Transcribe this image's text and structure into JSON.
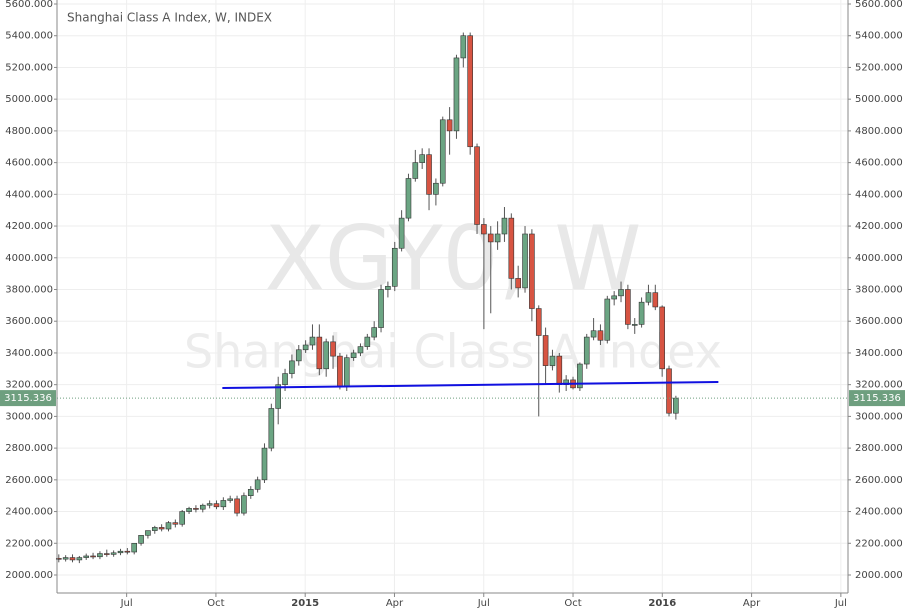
{
  "chart_data": {
    "type": "candlestick",
    "title": "Shanghai Class A Index, W, INDEX",
    "watermark": [
      "XGY0, W",
      "Shanghai Class A Index"
    ],
    "up_color": "#6ba583",
    "down_color": "#d75442",
    "x": [
      2014.31,
      2014.3292,
      2014.3484,
      2014.3676,
      2014.3868,
      2014.406,
      2014.4252,
      2014.4444,
      2014.4636,
      2014.4828,
      2014.502,
      2014.5212,
      2014.5404,
      2014.5596,
      2014.5788,
      2014.598,
      2014.6172,
      2014.6364,
      2014.6556,
      2014.6748,
      2014.694,
      2014.7132,
      2014.7324,
      2014.7516,
      2014.7708,
      2014.79,
      2014.8092,
      2014.8284,
      2014.8476,
      2014.8668,
      2014.886,
      2014.9052,
      2014.9244,
      2014.9436,
      2014.9628,
      2014.982,
      2015.0012,
      2015.0204,
      2015.0396,
      2015.0588,
      2015.078,
      2015.0972,
      2015.1164,
      2015.1356,
      2015.1548,
      2015.174,
      2015.1932,
      2015.2124,
      2015.2316,
      2015.2508,
      2015.27,
      2015.2892,
      2015.3084,
      2015.3276,
      2015.3468,
      2015.366,
      2015.3852,
      2015.4044,
      2015.4236,
      2015.4428,
      2015.462,
      2015.4812,
      2015.5004,
      2015.5196,
      2015.5388,
      2015.558,
      2015.5772,
      2015.5964,
      2015.6156,
      2015.6348,
      2015.654,
      2015.6732,
      2015.6924,
      2015.7116,
      2015.7308,
      2015.75,
      2015.7692,
      2015.7884,
      2015.8076,
      2015.8268,
      2015.846,
      2015.8652,
      2015.8844,
      2015.9036,
      2015.9228,
      2015.942,
      2015.9612,
      2015.9804,
      2015.9996,
      2016.0188,
      2016.038
    ],
    "open": [
      2105,
      2100,
      2110,
      2095,
      2110,
      2120,
      2115,
      2135,
      2130,
      2140,
      2150,
      2145,
      2200,
      2250,
      2280,
      2300,
      2290,
      2330,
      2320,
      2400,
      2420,
      2415,
      2440,
      2450,
      2430,
      2470,
      2480,
      2390,
      2500,
      2540,
      2600,
      2800,
      3050,
      3200,
      3270,
      3350,
      3420,
      3450,
      3500,
      3300,
      3470,
      3380,
      3190,
      3370,
      3400,
      3440,
      3500,
      3560,
      3800,
      3820,
      4060,
      4250,
      4500,
      4600,
      4650,
      4400,
      4470,
      4870,
      4800,
      5260,
      5400,
      4700,
      4210,
      4150,
      4100,
      4150,
      4250,
      3870,
      3810,
      4150,
      3680,
      3510,
      3320,
      3380,
      3200,
      3230,
      3180,
      3330,
      3500,
      3540,
      3480,
      3740,
      3760,
      3800,
      3580,
      3580,
      3720,
      3780,
      3690,
      3300,
      3020
    ],
    "high": [
      2130,
      2125,
      2130,
      2120,
      2135,
      2140,
      2150,
      2160,
      2155,
      2165,
      2170,
      2170,
      2230,
      2270,
      2310,
      2320,
      2340,
      2350,
      2410,
      2430,
      2440,
      2450,
      2470,
      2470,
      2490,
      2500,
      2500,
      2520,
      2560,
      2620,
      2830,
      3080,
      3250,
      3300,
      3390,
      3450,
      3480,
      3580,
      3580,
      3490,
      3510,
      3400,
      3390,
      3420,
      3460,
      3520,
      3600,
      3830,
      3850,
      4100,
      4300,
      4530,
      4680,
      4690,
      4690,
      4500,
      4890,
      4950,
      5280,
      5420,
      5420,
      4720,
      4250,
      4200,
      4230,
      4320,
      4280,
      3950,
      4200,
      4180,
      3700,
      3560,
      3420,
      3400,
      3260,
      3250,
      3340,
      3520,
      3620,
      3580,
      3760,
      3790,
      3850,
      3830,
      3620,
      3750,
      3830,
      3830,
      3700,
      3320,
      3130
    ],
    "low": [
      2080,
      2085,
      2080,
      2075,
      2095,
      2100,
      2100,
      2115,
      2115,
      2125,
      2130,
      2130,
      2185,
      2230,
      2260,
      2275,
      2275,
      2300,
      2305,
      2385,
      2395,
      2395,
      2420,
      2415,
      2410,
      2455,
      2370,
      2375,
      2480,
      2520,
      2580,
      2780,
      2950,
      3160,
      3240,
      3320,
      3400,
      3420,
      3260,
      3250,
      3300,
      3170,
      3160,
      3350,
      3380,
      3420,
      3480,
      3530,
      3750,
      3790,
      4040,
      4230,
      4480,
      4560,
      4300,
      4330,
      4450,
      4650,
      4750,
      5200,
      4650,
      4150,
      3550,
      3650,
      4050,
      4100,
      3800,
      3750,
      3780,
      3600,
      3000,
      3200,
      3290,
      3150,
      3160,
      3170,
      3160,
      3300,
      3480,
      3450,
      3460,
      3700,
      3720,
      3550,
      3520,
      3560,
      3700,
      3670,
      3250,
      3000,
      2980
    ],
    "close": [
      2100,
      2110,
      2095,
      2110,
      2120,
      2115,
      2135,
      2130,
      2140,
      2150,
      2145,
      2200,
      2250,
      2280,
      2300,
      2290,
      2330,
      2320,
      2400,
      2420,
      2415,
      2440,
      2450,
      2430,
      2470,
      2480,
      2390,
      2500,
      2540,
      2600,
      2800,
      3050,
      3200,
      3270,
      3350,
      3420,
      3450,
      3500,
      3300,
      3470,
      3380,
      3190,
      3370,
      3400,
      3440,
      3500,
      3560,
      3800,
      3820,
      4060,
      4250,
      4500,
      4600,
      4650,
      4400,
      4470,
      4870,
      4800,
      5260,
      5400,
      4700,
      4210,
      4150,
      4100,
      4150,
      4250,
      3870,
      3810,
      4150,
      3680,
      3510,
      3320,
      3380,
      3200,
      3230,
      3180,
      3330,
      3500,
      3540,
      3480,
      3740,
      3760,
      3800,
      3580,
      3580,
      3720,
      3780,
      3690,
      3300,
      3020,
      3115.336
    ],
    "trendline": {
      "x": [
        2014.768,
        2016.157
      ],
      "y": [
        3179,
        3217
      ],
      "color": "#1010e0"
    },
    "last_price": {
      "value": 3115.336,
      "label": "3115.336",
      "color": "#6e9f7f"
    },
    "xlim": [
      2014.305,
      2016.52
    ],
    "ylim": [
      2000,
      5600
    ],
    "xticks": [
      {
        "value": 2014.5,
        "label": "Jul"
      },
      {
        "value": 2014.75,
        "label": "Oct"
      },
      2015,
      {
        "value": 2015.25,
        "label": "Apr"
      },
      {
        "value": 2015.5,
        "label": "Jul"
      },
      {
        "value": 2015.75,
        "label": "Oct"
      },
      2016,
      {
        "value": 2016.25,
        "label": "Apr"
      },
      {
        "value": 2016.5,
        "label": "Jul"
      }
    ],
    "yticks": [
      {
        "value": 2000,
        "label": "2000.000"
      },
      {
        "value": 2200,
        "label": "2200.000"
      },
      {
        "value": 2400,
        "label": "2400.000"
      },
      {
        "value": 2600,
        "label": "2600.000"
      },
      {
        "value": 2800,
        "label": "2800.000"
      },
      {
        "value": 3000,
        "label": "3000.000"
      },
      {
        "value": 3200,
        "label": "3200.000"
      },
      {
        "value": 3400,
        "label": "3400.000"
      },
      {
        "value": 3600,
        "label": "3600.000"
      },
      {
        "value": 3800,
        "label": "3800.000"
      },
      {
        "value": 4000,
        "label": "4000.000"
      },
      {
        "value": 4200,
        "label": "4200.000"
      },
      {
        "value": 4400,
        "label": "4400.000"
      },
      {
        "value": 4600,
        "label": "4600.000"
      },
      {
        "value": 4800,
        "label": "4800.000"
      },
      {
        "value": 5000,
        "label": "5000.000"
      },
      {
        "value": 5200,
        "label": "5200.000"
      },
      {
        "value": 5400,
        "label": "5400.000"
      },
      {
        "value": 5600,
        "label": "5600.000"
      }
    ],
    "grid": true
  }
}
